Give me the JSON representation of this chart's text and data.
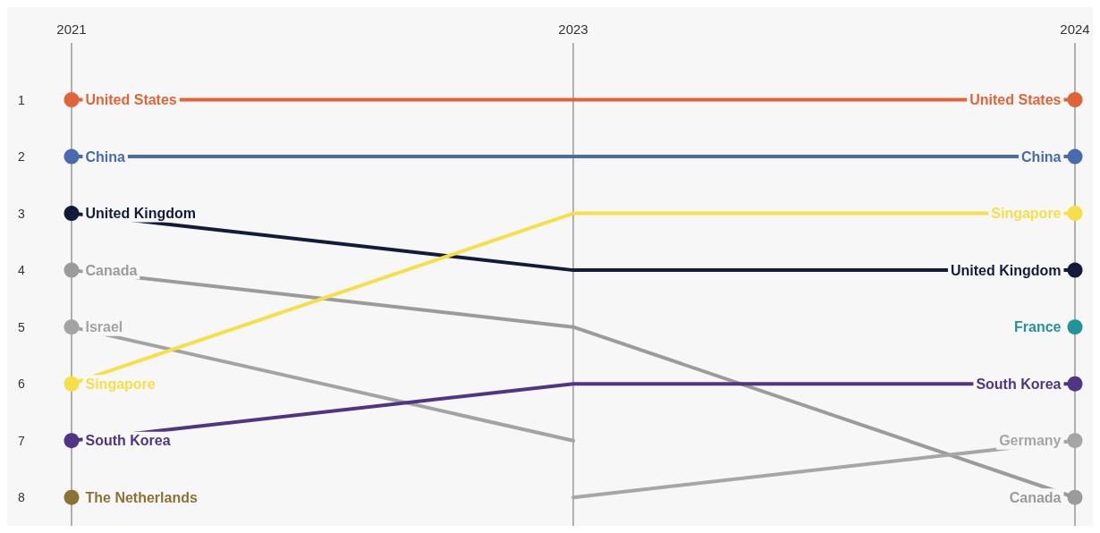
{
  "chart_data": {
    "type": "line",
    "categories": [
      "2021",
      "2023",
      "2024"
    ],
    "ylim": [
      8.5,
      0
    ],
    "yticks": [
      1,
      2,
      3,
      4,
      5,
      6,
      7,
      8
    ],
    "grid": "x",
    "marker": "circle",
    "line_style": "solid",
    "legend": false,
    "series": [
      {
        "name": "United States",
        "color": "#e0643a",
        "values": [
          1,
          1,
          1
        ]
      },
      {
        "name": "China",
        "color": "#4a6aaf",
        "values": [
          2,
          2,
          2
        ]
      },
      {
        "name": "United Kingdom",
        "color": "#131a3a",
        "values": [
          3,
          4,
          4
        ]
      },
      {
        "name": "Canada",
        "color": "#9b9b9b",
        "values": [
          4,
          5,
          8
        ]
      },
      {
        "name": "Israel",
        "color": "#a3a3a3",
        "values": [
          5,
          7,
          null
        ]
      },
      {
        "name": "Singapore",
        "color": "#f5e04a",
        "values": [
          6,
          3,
          3
        ]
      },
      {
        "name": "South Korea",
        "color": "#4e3585",
        "values": [
          7,
          6,
          6
        ]
      },
      {
        "name": "The Netherlands",
        "color": "#8a7333",
        "values": [
          8,
          null,
          null
        ]
      },
      {
        "name": "Germany",
        "color": "#a6a6a6",
        "values": [
          null,
          8,
          7
        ]
      },
      {
        "name": "France",
        "color": "#23939a",
        "values": [
          null,
          null,
          5
        ]
      }
    ]
  }
}
